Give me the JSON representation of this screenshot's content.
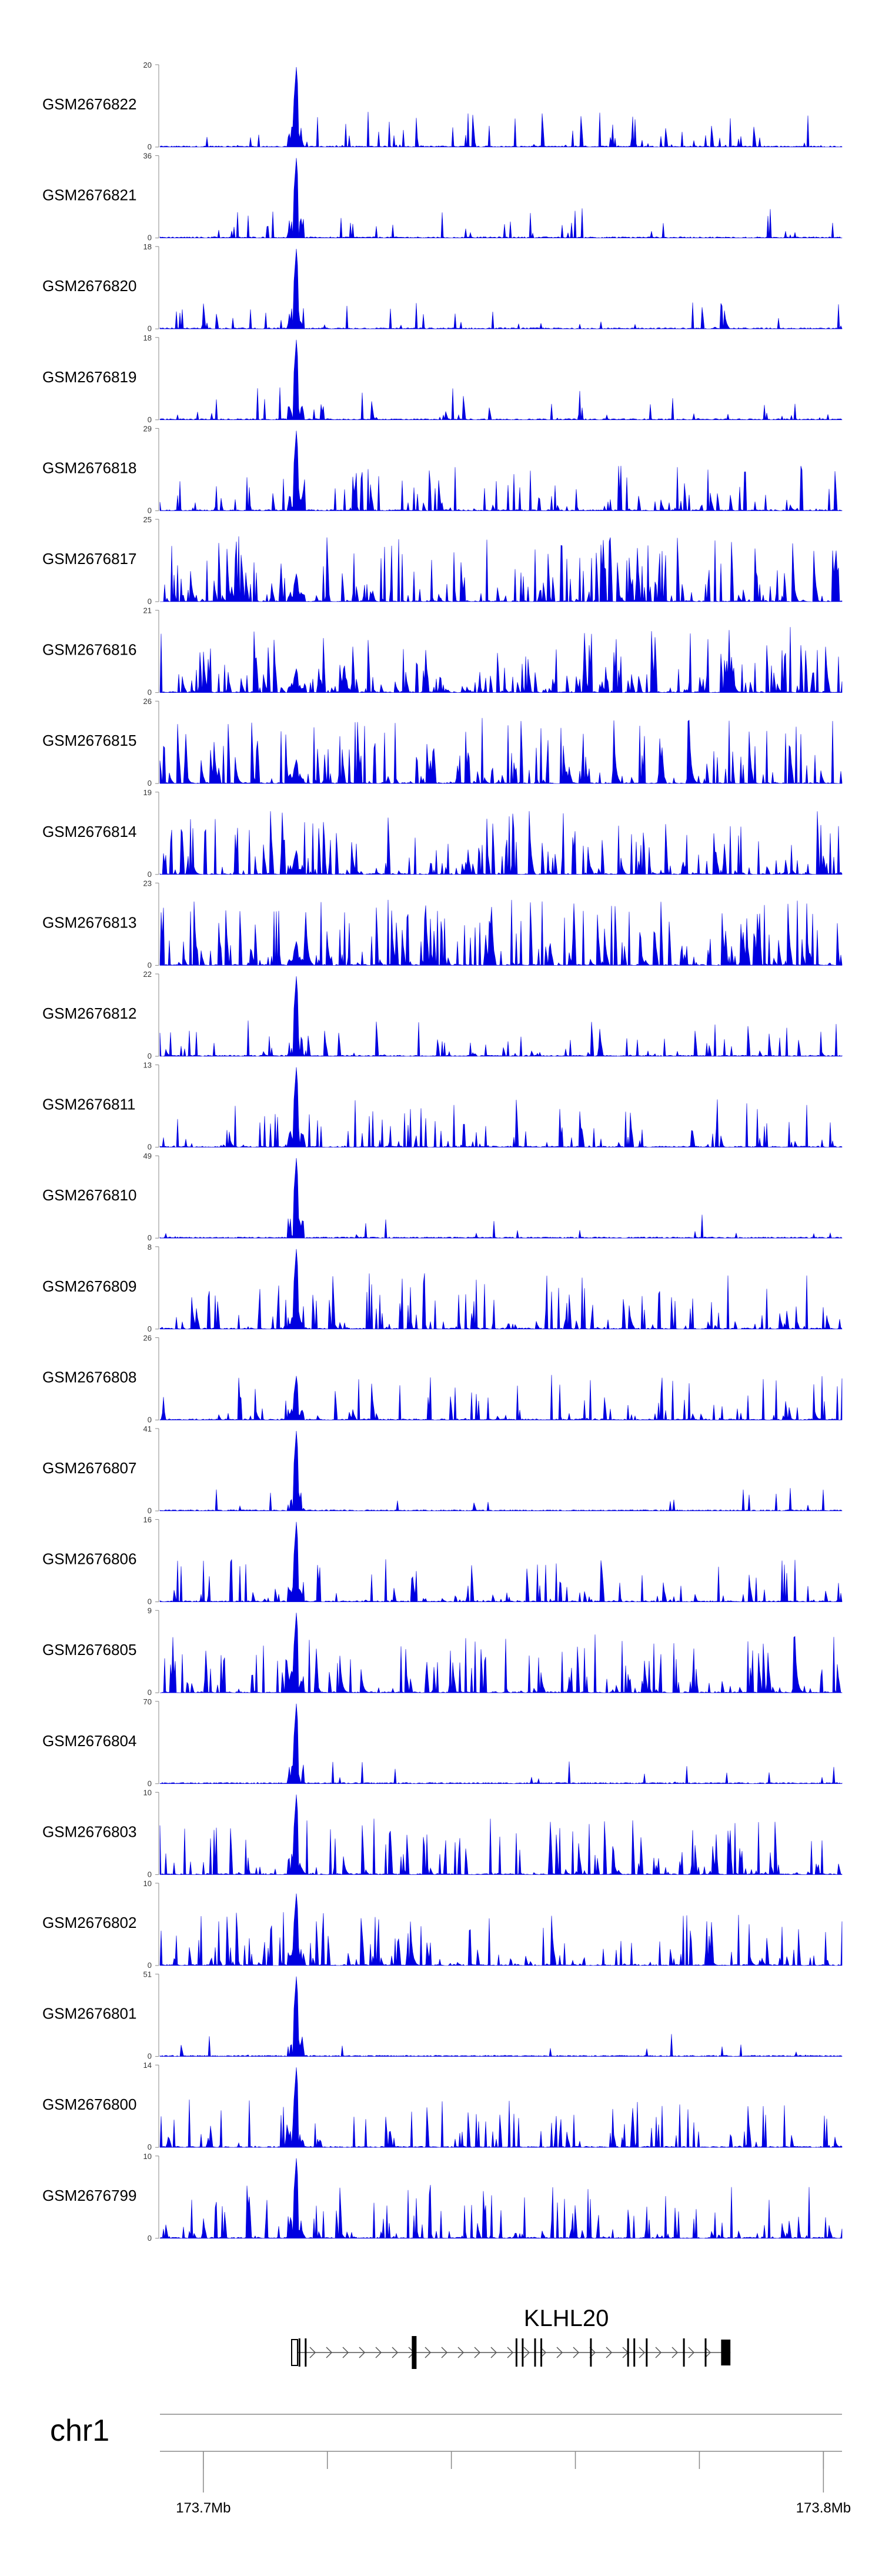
{
  "chart_data": {
    "type": "area",
    "chromosome": "chr1",
    "x_range": [
      173.693,
      173.803
    ],
    "series_color": "#0000e0",
    "tracks": [
      {
        "name": "GSM2676822",
        "ymax": "20",
        "ymin": "0",
        "max": 20,
        "density": 0.35,
        "peak": 1.0
      },
      {
        "name": "GSM2676821",
        "ymax": "36",
        "ymin": "0",
        "max": 36,
        "density": 0.22,
        "peak": 1.0
      },
      {
        "name": "GSM2676820",
        "ymax": "18",
        "ymin": "0",
        "max": 18,
        "density": 0.25,
        "peak": 1.0
      },
      {
        "name": "GSM2676819",
        "ymax": "18",
        "ymin": "0",
        "max": 18,
        "density": 0.28,
        "peak": 1.0
      },
      {
        "name": "GSM2676818",
        "ymax": "29",
        "ymin": "0",
        "max": 29,
        "density": 0.55,
        "peak": 1.0
      },
      {
        "name": "GSM2676817",
        "ymax": "25",
        "ymin": "0",
        "max": 25,
        "density": 0.95,
        "peak": 0.35
      },
      {
        "name": "GSM2676816",
        "ymax": "21",
        "ymin": "0",
        "max": 21,
        "density": 0.95,
        "peak": 0.3
      },
      {
        "name": "GSM2676815",
        "ymax": "26",
        "ymin": "0",
        "max": 26,
        "density": 0.95,
        "peak": 0.3
      },
      {
        "name": "GSM2676814",
        "ymax": "19",
        "ymin": "0",
        "max": 19,
        "density": 0.95,
        "peak": 0.3
      },
      {
        "name": "GSM2676813",
        "ymax": "23",
        "ymin": "0",
        "max": 23,
        "density": 0.95,
        "peak": 0.3
      },
      {
        "name": "GSM2676812",
        "ymax": "22",
        "ymin": "0",
        "max": 22,
        "density": 0.4,
        "peak": 1.0
      },
      {
        "name": "GSM2676811",
        "ymax": "13",
        "ymin": "0",
        "max": 13,
        "density": 0.6,
        "peak": 1.0
      },
      {
        "name": "GSM2676810",
        "ymax": "49",
        "ymin": "0",
        "max": 49,
        "density": 0.08,
        "peak": 1.0
      },
      {
        "name": "GSM2676809",
        "ymax": "8",
        "ymin": "0",
        "max": 8,
        "density": 0.75,
        "peak": 1.0
      },
      {
        "name": "GSM2676808",
        "ymax": "26",
        "ymin": "0",
        "max": 26,
        "density": 0.55,
        "peak": 0.55
      },
      {
        "name": "GSM2676807",
        "ymax": "41",
        "ymin": "0",
        "max": 41,
        "density": 0.1,
        "peak": 1.0
      },
      {
        "name": "GSM2676806",
        "ymax": "16",
        "ymin": "0",
        "max": 16,
        "density": 0.5,
        "peak": 1.0
      },
      {
        "name": "GSM2676805",
        "ymax": "9",
        "ymin": "0",
        "max": 9,
        "density": 0.8,
        "peak": 1.0
      },
      {
        "name": "GSM2676804",
        "ymax": "70",
        "ymin": "0",
        "max": 70,
        "density": 0.06,
        "peak": 1.0
      },
      {
        "name": "GSM2676803",
        "ymax": "10",
        "ymin": "0",
        "max": 10,
        "density": 0.75,
        "peak": 1.0
      },
      {
        "name": "GSM2676802",
        "ymax": "10",
        "ymin": "0",
        "max": 10,
        "density": 0.7,
        "peak": 0.9
      },
      {
        "name": "GSM2676801",
        "ymax": "51",
        "ymin": "0",
        "max": 51,
        "density": 0.06,
        "peak": 1.0
      },
      {
        "name": "GSM2676800",
        "ymax": "14",
        "ymin": "0",
        "max": 14,
        "density": 0.6,
        "peak": 1.0
      },
      {
        "name": "GSM2676799",
        "ymax": "10",
        "ymin": "0",
        "max": 10,
        "density": 0.7,
        "peak": 1.0
      }
    ],
    "gene": {
      "name": "KLHL20",
      "start": 173.715,
      "end": 173.785,
      "strand": "+",
      "exons": [
        173.7155,
        173.7165,
        173.734,
        173.7505,
        173.7515,
        173.7535,
        173.7545,
        173.7625,
        173.7685,
        173.7695,
        173.7715,
        173.7775,
        173.781
      ],
      "last_exon": [
        173.7835,
        173.785
      ]
    },
    "axis": {
      "ticks": [
        173.7,
        173.72,
        173.74,
        173.76,
        173.78,
        173.8
      ],
      "tick_labels": [
        {
          "value": 173.7,
          "label": "173.7Mb"
        },
        {
          "value": 173.8,
          "label": "173.8Mb"
        }
      ]
    },
    "peak_position": 173.715
  }
}
